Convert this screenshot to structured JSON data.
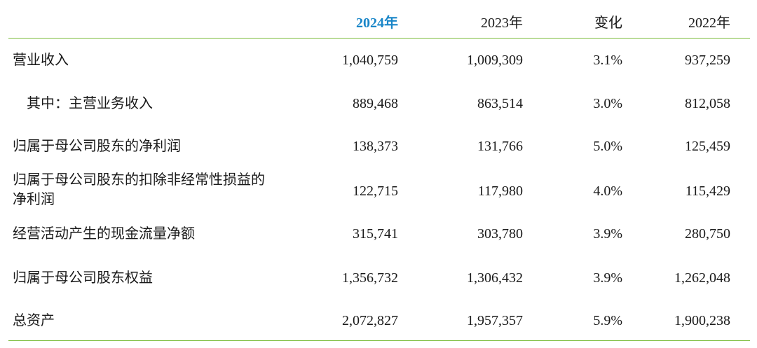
{
  "header": {
    "col_2024": "2024年",
    "col_2023": "2023年",
    "col_change": "变化",
    "col_2022": "2022年"
  },
  "rows": [
    {
      "label": "营业收入",
      "v2024": "1,040,759",
      "v2023": "1,009,309",
      "change": "3.1%",
      "v2022": "937,259"
    },
    {
      "label": "其中：主营业务收入",
      "v2024": "889,468",
      "v2023": "863,514",
      "change": "3.0%",
      "v2022": "812,058"
    },
    {
      "label": "归属于母公司股东的净利润",
      "v2024": "138,373",
      "v2023": "131,766",
      "change": "5.0%",
      "v2022": "125,459"
    },
    {
      "label_line1": "归属于母公司股东的扣除非经常性损益的",
      "label_line2": "净利润",
      "v2024": "122,715",
      "v2023": "117,980",
      "change": "4.0%",
      "v2022": "115,429"
    },
    {
      "label": "经营活动产生的现金流量净额",
      "v2024": "315,741",
      "v2023": "303,780",
      "change": "3.9%",
      "v2022": "280,750"
    },
    {
      "label": "归属于母公司股东权益",
      "v2024": "1,356,732",
      "v2023": "1,306,432",
      "change": "3.9%",
      "v2022": "1,262,048"
    },
    {
      "label": "总资产",
      "v2024": "2,072,827",
      "v2023": "1,957,357",
      "change": "5.9%",
      "v2022": "1,900,238"
    }
  ],
  "colors": {
    "rule": "#7cbd3c",
    "highlight_header": "#1a86c8",
    "text": "#1a1a1a"
  }
}
